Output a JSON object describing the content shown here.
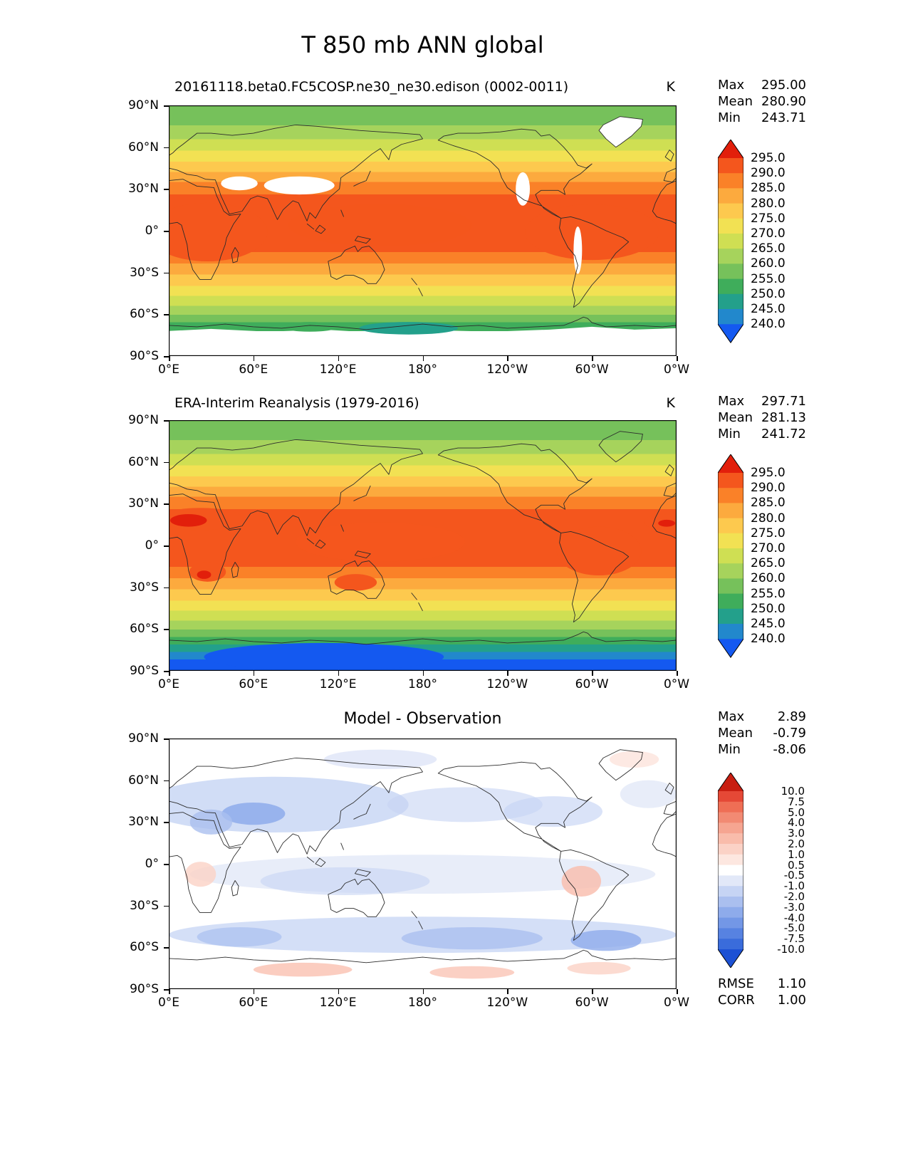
{
  "figure": {
    "title": "T 850 mb ANN global"
  },
  "axes": {
    "yticks": [
      "90°N",
      "60°N",
      "30°N",
      "0°",
      "30°S",
      "60°S",
      "90°S"
    ],
    "xticks": [
      "0°E",
      "60°E",
      "120°E",
      "180°",
      "120°W",
      "60°W",
      "0°W"
    ]
  },
  "panels": [
    {
      "title": "20161118.beta0.FC5COSP.ne30_ne30.edison (0002-0011)",
      "units": "K",
      "stats": [
        {
          "label": "Max",
          "value": "295.00"
        },
        {
          "label": "Mean",
          "value": "280.90"
        },
        {
          "label": "Min",
          "value": "243.71"
        }
      ],
      "colorbar": {
        "labels": [
          "295.0",
          "290.0",
          "285.0",
          "280.0",
          "275.0",
          "270.0",
          "265.0",
          "260.0",
          "255.0",
          "250.0",
          "245.0",
          "240.0"
        ],
        "colors": [
          "#e21f0b",
          "#f4561d",
          "#fa8128",
          "#fcaa3e",
          "#fdc94e",
          "#f2e153",
          "#cfdf53",
          "#a6d35c",
          "#76c15b",
          "#3fad5b",
          "#23a08b",
          "#2288cc",
          "#1459f0"
        ]
      }
    },
    {
      "title": "ERA-Interim Reanalysis (1979-2016)",
      "units": "K",
      "stats": [
        {
          "label": "Max",
          "value": "297.71"
        },
        {
          "label": "Mean",
          "value": "281.13"
        },
        {
          "label": "Min",
          "value": "241.72"
        }
      ],
      "colorbar": {
        "labels": [
          "295.0",
          "290.0",
          "285.0",
          "280.0",
          "275.0",
          "270.0",
          "265.0",
          "260.0",
          "255.0",
          "250.0",
          "245.0",
          "240.0"
        ],
        "colors": [
          "#e21f0b",
          "#f4561d",
          "#fa8128",
          "#fcaa3e",
          "#fdc94e",
          "#f2e153",
          "#cfdf53",
          "#a6d35c",
          "#76c15b",
          "#3fad5b",
          "#23a08b",
          "#2288cc",
          "#1459f0"
        ]
      }
    },
    {
      "title": "Model - Observation",
      "units": "K",
      "stats": [
        {
          "label": "Max",
          "value": "2.89"
        },
        {
          "label": "Mean",
          "value": "-0.79"
        },
        {
          "label": "Min",
          "value": "-8.06"
        }
      ],
      "colorbar": {
        "labels": [
          "10.0",
          "7.5",
          "5.0",
          "4.0",
          "3.0",
          "2.0",
          "1.0",
          "0.5",
          "-0.5",
          "-1.0",
          "-2.0",
          "-3.0",
          "-4.0",
          "-5.0",
          "-7.5",
          "-10.0"
        ],
        "colors": [
          "#c81e11",
          "#e54836",
          "#ef6e55",
          "#f28a73",
          "#f6a591",
          "#f9bcab",
          "#fbd2c6",
          "#fde7e0",
          "#ffffff",
          "#e2e8f8",
          "#c6d4f4",
          "#aabfef",
          "#8eabeb",
          "#7397e6",
          "#5782e1",
          "#3a6cdb",
          "#1c51d4"
        ]
      },
      "extra": [
        {
          "label": "RMSE",
          "value": "1.10"
        },
        {
          "label": "CORR",
          "value": "1.00"
        }
      ]
    }
  ],
  "chart_data": [
    {
      "type": "heatmap",
      "subtype": "filled-contour-map",
      "title": "20161118.beta0.FC5COSP.ne30_ne30.edison (0002-0011)",
      "variable": "T 850 mb",
      "season": "ANN",
      "region": "global",
      "units": "K",
      "stats": {
        "max": 295.0,
        "mean": 280.9,
        "min": 243.71
      },
      "levels": [
        240.0,
        245.0,
        250.0,
        255.0,
        260.0,
        265.0,
        270.0,
        275.0,
        280.0,
        285.0,
        290.0,
        295.0
      ],
      "x_ticks": [
        "0°E",
        "60°E",
        "120°E",
        "180°",
        "120°W",
        "60°W",
        "0°W"
      ],
      "y_ticks": [
        "90°N",
        "60°N",
        "30°N",
        "0°",
        "30°S",
        "60°S",
        "90°S"
      ],
      "x_range_deg": [
        0,
        360
      ],
      "y_range_deg": [
        -90,
        90
      ],
      "legend_position": "right"
    },
    {
      "type": "heatmap",
      "subtype": "filled-contour-map",
      "title": "ERA-Interim Reanalysis (1979-2016)",
      "variable": "T 850 mb",
      "season": "ANN",
      "region": "global",
      "units": "K",
      "stats": {
        "max": 297.71,
        "mean": 281.13,
        "min": 241.72
      },
      "levels": [
        240.0,
        245.0,
        250.0,
        255.0,
        260.0,
        265.0,
        270.0,
        275.0,
        280.0,
        285.0,
        290.0,
        295.0
      ],
      "x_ticks": [
        "0°E",
        "60°E",
        "120°E",
        "180°",
        "120°W",
        "60°W",
        "0°W"
      ],
      "y_ticks": [
        "90°N",
        "60°N",
        "30°N",
        "0°",
        "30°S",
        "60°S",
        "90°S"
      ],
      "x_range_deg": [
        0,
        360
      ],
      "y_range_deg": [
        -90,
        90
      ],
      "legend_position": "right"
    },
    {
      "type": "heatmap",
      "subtype": "filled-contour-map-difference",
      "title": "Model - Observation",
      "variable": "T 850 mb",
      "season": "ANN",
      "region": "global",
      "units": "K",
      "stats": {
        "max": 2.89,
        "mean": -0.79,
        "min": -8.06,
        "rmse": 1.1,
        "corr": 1.0
      },
      "levels": [
        -10.0,
        -7.5,
        -5.0,
        -4.0,
        -3.0,
        -2.0,
        -1.0,
        -0.5,
        0.5,
        1.0,
        2.0,
        3.0,
        4.0,
        5.0,
        7.5,
        10.0
      ],
      "x_ticks": [
        "0°E",
        "60°E",
        "120°E",
        "180°",
        "120°W",
        "60°W",
        "0°W"
      ],
      "y_ticks": [
        "90°N",
        "60°N",
        "30°N",
        "0°",
        "30°S",
        "60°S",
        "90°S"
      ],
      "x_range_deg": [
        0,
        360
      ],
      "y_range_deg": [
        -90,
        90
      ],
      "legend_position": "right"
    }
  ]
}
